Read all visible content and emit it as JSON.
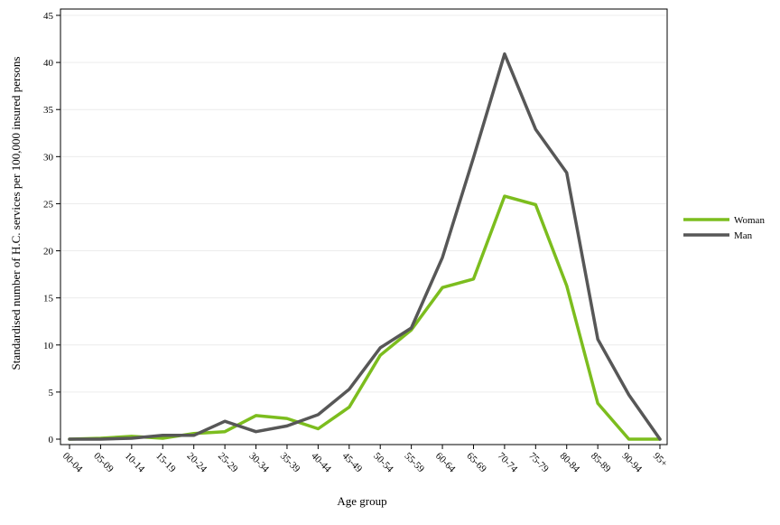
{
  "chart_data": {
    "type": "line",
    "title": "",
    "xlabel": "Age group",
    "ylabel": "Standardised number of H.C. services per 100,000 insured persons",
    "ylim": [
      0,
      45
    ],
    "yticks": [
      0,
      5,
      10,
      15,
      20,
      25,
      30,
      35,
      40,
      45
    ],
    "categories": [
      "00-04",
      "05-09",
      "10-14",
      "15-19",
      "20-24",
      "25-29",
      "30-34",
      "35-39",
      "40-44",
      "45-49",
      "50-54",
      "55-59",
      "60-64",
      "65-69",
      "70-74",
      "75-79",
      "80-84",
      "85-89",
      "90-94",
      "95+"
    ],
    "grid": "horizontal",
    "legend_position": "right",
    "series": [
      {
        "name": "Woman",
        "color": "#7cbd1e",
        "values": [
          0,
          0.1,
          0.3,
          0.1,
          0.6,
          0.8,
          2.5,
          2.2,
          1.1,
          3.4,
          8.9,
          11.6,
          16.1,
          17.0,
          25.8,
          24.9,
          16.3,
          3.8,
          0,
          0
        ]
      },
      {
        "name": "Man",
        "color": "#575757",
        "values": [
          0,
          0,
          0.1,
          0.4,
          0.4,
          1.9,
          0.8,
          1.4,
          2.6,
          5.3,
          9.7,
          11.8,
          19.3,
          29.9,
          40.9,
          32.9,
          28.3,
          10.6,
          4.7,
          0
        ]
      }
    ]
  }
}
